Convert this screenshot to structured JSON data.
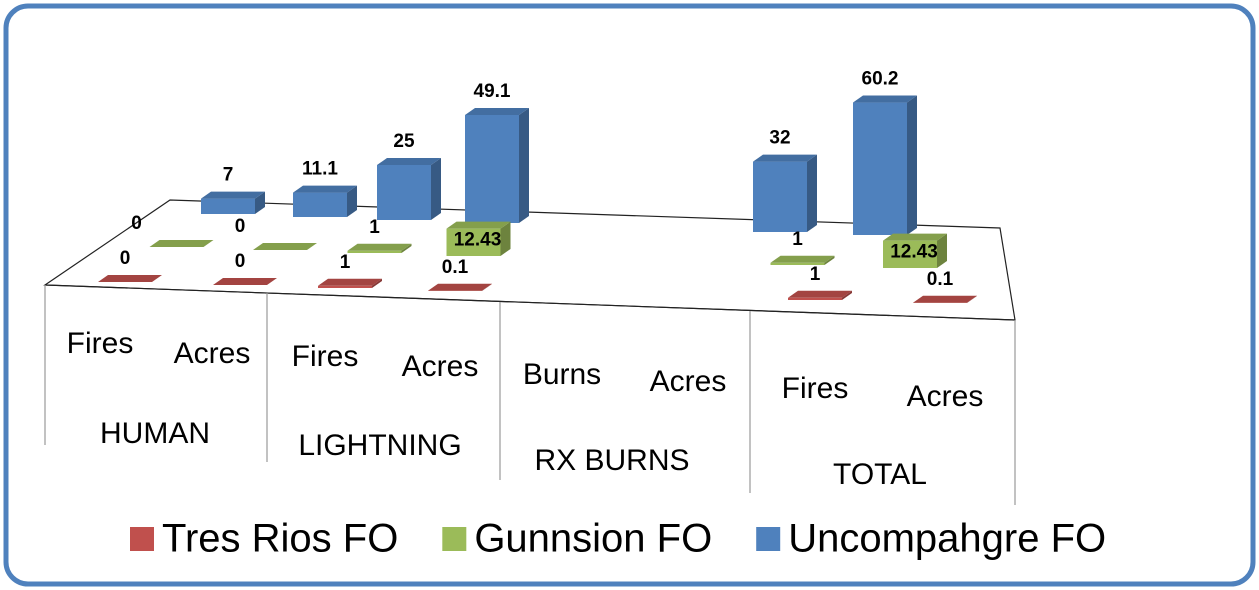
{
  "chart_data": {
    "type": "bar3d",
    "categories": [
      "Fires",
      "Acres",
      "Fires",
      "Acres",
      "Burns",
      "Acres",
      "Fires",
      "Acres"
    ],
    "groups": [
      "HUMAN",
      "LIGHTNING",
      "RX BURNS",
      "TOTAL"
    ],
    "series": [
      {
        "name": "Tres Rios FO",
        "color": "#c0504d",
        "values": [
          0,
          0,
          1,
          0.1,
          null,
          null,
          1,
          0.1
        ]
      },
      {
        "name": "Gunnsion FO",
        "color": "#9bbb59",
        "values": [
          0,
          0,
          1,
          12.43,
          null,
          null,
          1,
          12.43
        ]
      },
      {
        "name": "Uncompahgre FO",
        "color": "#4f81bd",
        "values": [
          7,
          11.1,
          25,
          49.1,
          null,
          null,
          32,
          60.2
        ]
      }
    ]
  }
}
